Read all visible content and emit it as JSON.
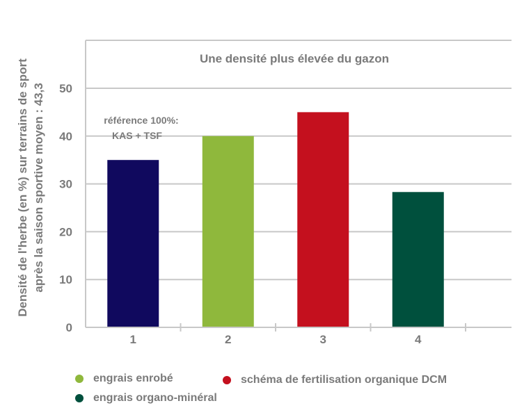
{
  "chart_data": {
    "type": "bar",
    "title": "Une densité plus élevée du gazon",
    "ylabel_line1": "Densité de l'herbe (en %) sur terrains de sport",
    "ylabel_line2": "après la saison sportive moyen : 43,3",
    "categories": [
      "1",
      "2",
      "3",
      "4"
    ],
    "values": [
      35,
      40,
      45,
      28.3
    ],
    "colors": [
      "#10095e",
      "#8fb83c",
      "#c4101e",
      "#00503d"
    ],
    "ylim": [
      0,
      50
    ],
    "yticks": [
      "0",
      "10",
      "20",
      "30",
      "40",
      "50"
    ],
    "ytick_values": [
      0,
      10,
      20,
      30,
      40,
      50
    ],
    "grid": true,
    "annotation_line1": "référence 100%:",
    "annotation_line2": "KAS + TSF",
    "axis_color": "#c8c8c8",
    "text_color": "#7a7a7a"
  },
  "legend": [
    {
      "label": "engrais enrobé",
      "color": "#8fb83c"
    },
    {
      "label": "schéma de fertilisation organique DCM",
      "color": "#c4101e"
    },
    {
      "label": "engrais organo-minéral",
      "color": "#00503d"
    }
  ]
}
